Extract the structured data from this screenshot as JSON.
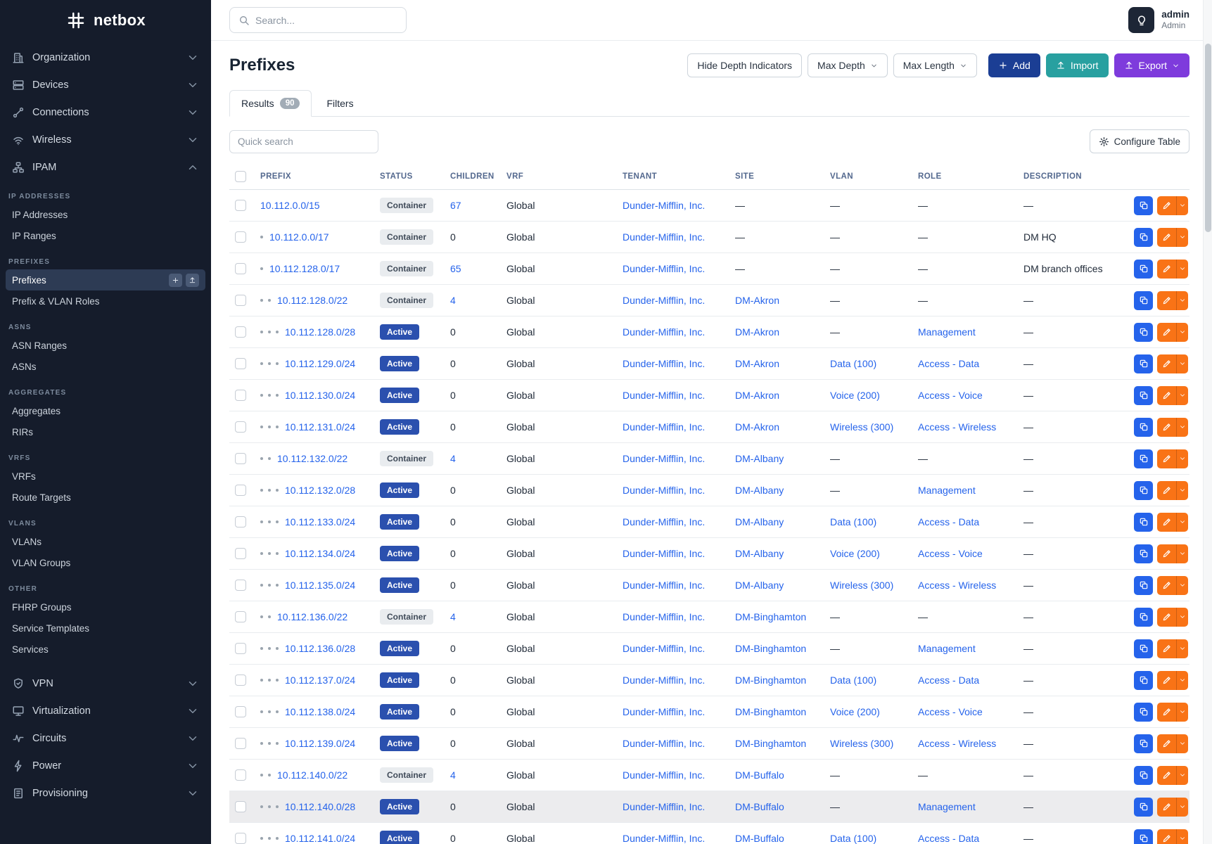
{
  "brand": {
    "logo_text": "netbox"
  },
  "topbar": {
    "search_placeholder": "Search...",
    "user_name": "admin",
    "user_role": "Admin"
  },
  "sidebar": {
    "top_items": [
      {
        "label": "Organization",
        "icon": "organization-icon"
      },
      {
        "label": "Devices",
        "icon": "devices-icon"
      },
      {
        "label": "Connections",
        "icon": "connections-icon"
      },
      {
        "label": "Wireless",
        "icon": "wireless-icon"
      },
      {
        "label": "IPAM",
        "icon": "ipam-icon",
        "expanded": true
      }
    ],
    "sections": [
      {
        "title": "IP Addresses",
        "items": [
          {
            "label": "IP Addresses"
          },
          {
            "label": "IP Ranges"
          }
        ]
      },
      {
        "title": "Prefixes",
        "items": [
          {
            "label": "Prefixes",
            "active": true,
            "actions": [
              {
                "name": "add-prefix-button",
                "icon": "plus-icon"
              },
              {
                "name": "import-prefixes-button",
                "icon": "upload-icon"
              }
            ]
          },
          {
            "label": "Prefix & VLAN Roles"
          }
        ]
      },
      {
        "title": "ASNs",
        "items": [
          {
            "label": "ASN Ranges"
          },
          {
            "label": "ASNs"
          }
        ]
      },
      {
        "title": "Aggregates",
        "items": [
          {
            "label": "Aggregates"
          },
          {
            "label": "RIRs"
          }
        ]
      },
      {
        "title": "VRFs",
        "items": [
          {
            "label": "VRFs"
          },
          {
            "label": "Route Targets"
          }
        ]
      },
      {
        "title": "VLANs",
        "items": [
          {
            "label": "VLANs"
          },
          {
            "label": "VLAN Groups"
          }
        ]
      },
      {
        "title": "Other",
        "items": [
          {
            "label": "FHRP Groups"
          },
          {
            "label": "Service Templates"
          },
          {
            "label": "Services"
          }
        ]
      }
    ],
    "bottom_items": [
      {
        "label": "VPN",
        "icon": "vpn-icon"
      },
      {
        "label": "Virtualization",
        "icon": "virtualization-icon"
      },
      {
        "label": "Circuits",
        "icon": "circuits-icon"
      },
      {
        "label": "Power",
        "icon": "power-icon"
      },
      {
        "label": "Provisioning",
        "icon": "provisioning-icon"
      }
    ]
  },
  "page": {
    "title": "Prefixes",
    "toolbar": [
      {
        "label": "Hide Depth Indicators",
        "type": "outline"
      },
      {
        "label": "Max Depth",
        "type": "outline",
        "caret": true
      },
      {
        "label": "Max Length",
        "type": "outline",
        "caret": true
      },
      {
        "label": "Add",
        "type": "primary",
        "icon": "plus-icon"
      },
      {
        "label": "Import",
        "type": "teal",
        "icon": "upload-icon"
      },
      {
        "label": "Export",
        "type": "purple",
        "icon": "upload-icon",
        "caret": true
      }
    ],
    "tabs": [
      {
        "label": "Results",
        "badge": "90",
        "active": true
      },
      {
        "label": "Filters"
      }
    ],
    "quick_search_placeholder": "Quick search",
    "configure_table_label": "Configure Table"
  },
  "table": {
    "columns": [
      "Prefix",
      "Status",
      "Children",
      "VRF",
      "Tenant",
      "Site",
      "VLAN",
      "Role",
      "Description"
    ],
    "rows": [
      {
        "depth": 0,
        "prefix": "10.112.0.0/15",
        "status": "Container",
        "children": "67",
        "vrf": "Global",
        "tenant": "Dunder-Mifflin, Inc.",
        "site": "—",
        "vlan": "—",
        "role": "—",
        "description": "—"
      },
      {
        "depth": 1,
        "prefix": "10.112.0.0/17",
        "status": "Container",
        "children": "0",
        "vrf": "Global",
        "tenant": "Dunder-Mifflin, Inc.",
        "site": "—",
        "vlan": "—",
        "role": "—",
        "description": "DM HQ"
      },
      {
        "depth": 1,
        "prefix": "10.112.128.0/17",
        "status": "Container",
        "children": "65",
        "vrf": "Global",
        "tenant": "Dunder-Mifflin, Inc.",
        "site": "—",
        "vlan": "—",
        "role": "—",
        "description": "DM branch offices"
      },
      {
        "depth": 2,
        "prefix": "10.112.128.0/22",
        "status": "Container",
        "children": "4",
        "vrf": "Global",
        "tenant": "Dunder-Mifflin, Inc.",
        "site": "DM-Akron",
        "vlan": "—",
        "role": "—",
        "description": "—"
      },
      {
        "depth": 3,
        "prefix": "10.112.128.0/28",
        "status": "Active",
        "children": "0",
        "vrf": "Global",
        "tenant": "Dunder-Mifflin, Inc.",
        "site": "DM-Akron",
        "vlan": "—",
        "role": "Management",
        "description": "—"
      },
      {
        "depth": 3,
        "prefix": "10.112.129.0/24",
        "status": "Active",
        "children": "0",
        "vrf": "Global",
        "tenant": "Dunder-Mifflin, Inc.",
        "site": "DM-Akron",
        "vlan": "Data (100)",
        "role": "Access - Data",
        "description": "—"
      },
      {
        "depth": 3,
        "prefix": "10.112.130.0/24",
        "status": "Active",
        "children": "0",
        "vrf": "Global",
        "tenant": "Dunder-Mifflin, Inc.",
        "site": "DM-Akron",
        "vlan": "Voice (200)",
        "role": "Access - Voice",
        "description": "—"
      },
      {
        "depth": 3,
        "prefix": "10.112.131.0/24",
        "status": "Active",
        "children": "0",
        "vrf": "Global",
        "tenant": "Dunder-Mifflin, Inc.",
        "site": "DM-Akron",
        "vlan": "Wireless (300)",
        "role": "Access - Wireless",
        "description": "—"
      },
      {
        "depth": 2,
        "prefix": "10.112.132.0/22",
        "status": "Container",
        "children": "4",
        "vrf": "Global",
        "tenant": "Dunder-Mifflin, Inc.",
        "site": "DM-Albany",
        "vlan": "—",
        "role": "—",
        "description": "—"
      },
      {
        "depth": 3,
        "prefix": "10.112.132.0/28",
        "status": "Active",
        "children": "0",
        "vrf": "Global",
        "tenant": "Dunder-Mifflin, Inc.",
        "site": "DM-Albany",
        "vlan": "—",
        "role": "Management",
        "description": "—"
      },
      {
        "depth": 3,
        "prefix": "10.112.133.0/24",
        "status": "Active",
        "children": "0",
        "vrf": "Global",
        "tenant": "Dunder-Mifflin, Inc.",
        "site": "DM-Albany",
        "vlan": "Data (100)",
        "role": "Access - Data",
        "description": "—"
      },
      {
        "depth": 3,
        "prefix": "10.112.134.0/24",
        "status": "Active",
        "children": "0",
        "vrf": "Global",
        "tenant": "Dunder-Mifflin, Inc.",
        "site": "DM-Albany",
        "vlan": "Voice (200)",
        "role": "Access - Voice",
        "description": "—"
      },
      {
        "depth": 3,
        "prefix": "10.112.135.0/24",
        "status": "Active",
        "children": "0",
        "vrf": "Global",
        "tenant": "Dunder-Mifflin, Inc.",
        "site": "DM-Albany",
        "vlan": "Wireless (300)",
        "role": "Access - Wireless",
        "description": "—"
      },
      {
        "depth": 2,
        "prefix": "10.112.136.0/22",
        "status": "Container",
        "children": "4",
        "vrf": "Global",
        "tenant": "Dunder-Mifflin, Inc.",
        "site": "DM-Binghamton",
        "vlan": "—",
        "role": "—",
        "description": "—"
      },
      {
        "depth": 3,
        "prefix": "10.112.136.0/28",
        "status": "Active",
        "children": "0",
        "vrf": "Global",
        "tenant": "Dunder-Mifflin, Inc.",
        "site": "DM-Binghamton",
        "vlan": "—",
        "role": "Management",
        "description": "—"
      },
      {
        "depth": 3,
        "prefix": "10.112.137.0/24",
        "status": "Active",
        "children": "0",
        "vrf": "Global",
        "tenant": "Dunder-Mifflin, Inc.",
        "site": "DM-Binghamton",
        "vlan": "Data (100)",
        "role": "Access - Data",
        "description": "—"
      },
      {
        "depth": 3,
        "prefix": "10.112.138.0/24",
        "status": "Active",
        "children": "0",
        "vrf": "Global",
        "tenant": "Dunder-Mifflin, Inc.",
        "site": "DM-Binghamton",
        "vlan": "Voice (200)",
        "role": "Access - Voice",
        "description": "—"
      },
      {
        "depth": 3,
        "prefix": "10.112.139.0/24",
        "status": "Active",
        "children": "0",
        "vrf": "Global",
        "tenant": "Dunder-Mifflin, Inc.",
        "site": "DM-Binghamton",
        "vlan": "Wireless (300)",
        "role": "Access - Wireless",
        "description": "—"
      },
      {
        "depth": 2,
        "prefix": "10.112.140.0/22",
        "status": "Container",
        "children": "4",
        "vrf": "Global",
        "tenant": "Dunder-Mifflin, Inc.",
        "site": "DM-Buffalo",
        "vlan": "—",
        "role": "—",
        "description": "—"
      },
      {
        "depth": 3,
        "prefix": "10.112.140.0/28",
        "status": "Active",
        "children": "0",
        "vrf": "Global",
        "tenant": "Dunder-Mifflin, Inc.",
        "site": "DM-Buffalo",
        "vlan": "—",
        "role": "Management",
        "description": "—",
        "highlight": true
      },
      {
        "depth": 3,
        "prefix": "10.112.141.0/24",
        "status": "Active",
        "children": "0",
        "vrf": "Global",
        "tenant": "Dunder-Mifflin, Inc.",
        "site": "DM-Buffalo",
        "vlan": "Data (100)",
        "role": "Access - Data",
        "description": "—"
      }
    ]
  }
}
